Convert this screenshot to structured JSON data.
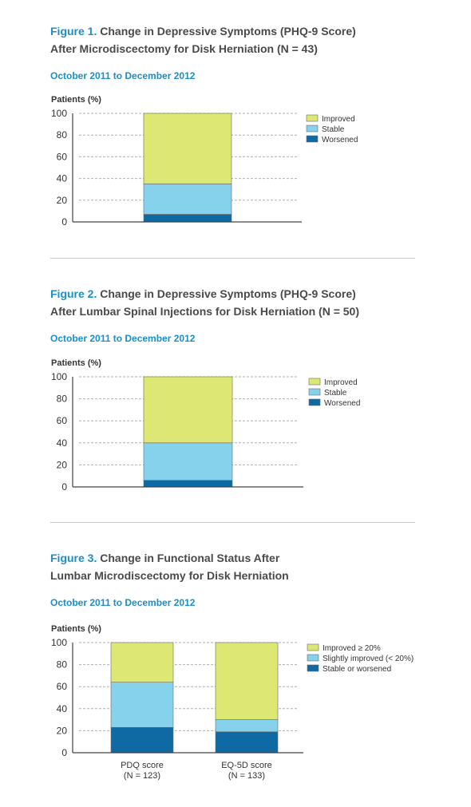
{
  "colors": {
    "improved": "#dde874",
    "stable": "#86d1eb",
    "worsened": "#0f6aa3",
    "accent": "#1a8fc9"
  },
  "figures": [
    {
      "label": "Figure 1.",
      "title_line1": "Change in Depressive Symptoms (PHQ-9 Score)",
      "title_line2": "After Microdiscectomy for Disk Herniation (N = 43)",
      "date_range": "October 2011 to December 2012"
    },
    {
      "label": "Figure 2.",
      "title_line1": "Change in Depressive Symptoms (PHQ-9 Score)",
      "title_line2": "After Lumbar Spinal Injections for Disk Herniation (N = 50)",
      "date_range": "October 2011 to December 2012"
    },
    {
      "label": "Figure 3.",
      "title_line1": "Change in Functional Status After",
      "title_line2": "Lumbar Microdiscectomy for Disk Herniation",
      "date_range": "October 2011 to December 2012"
    }
  ],
  "chart_data": [
    {
      "type": "bar",
      "stacked": true,
      "ylabel": "Patients (%)",
      "ylim": [
        0,
        100
      ],
      "yticks": [
        0,
        20,
        40,
        60,
        80,
        100
      ],
      "grid": true,
      "legend_position": "right",
      "categories": [
        ""
      ],
      "series": [
        {
          "name": "Worsened",
          "values": [
            7
          ],
          "color": "#0f6aa3"
        },
        {
          "name": "Stable",
          "values": [
            28
          ],
          "color": "#86d1eb"
        },
        {
          "name": "Improved",
          "values": [
            65
          ],
          "color": "#dde874"
        }
      ]
    },
    {
      "type": "bar",
      "stacked": true,
      "ylabel": "Patients (%)",
      "ylim": [
        0,
        100
      ],
      "yticks": [
        0,
        20,
        40,
        60,
        80,
        100
      ],
      "grid": true,
      "legend_position": "right",
      "categories": [
        ""
      ],
      "series": [
        {
          "name": "Worsened",
          "values": [
            6
          ],
          "color": "#0f6aa3"
        },
        {
          "name": "Stable",
          "values": [
            34
          ],
          "color": "#86d1eb"
        },
        {
          "name": "Improved",
          "values": [
            60
          ],
          "color": "#dde874"
        }
      ]
    },
    {
      "type": "bar",
      "stacked": true,
      "ylabel": "Patients (%)",
      "ylim": [
        0,
        100
      ],
      "yticks": [
        0,
        20,
        40,
        60,
        80,
        100
      ],
      "grid": true,
      "legend_position": "right",
      "categories": [
        "PDQ score",
        "EQ-5D score"
      ],
      "category_sublabels": [
        "(N = 123)",
        "(N = 133)"
      ],
      "series": [
        {
          "name": "Stable or worsened",
          "values": [
            23,
            19
          ],
          "color": "#0f6aa3"
        },
        {
          "name": "Slightly improved (< 20%)",
          "values": [
            41,
            11
          ],
          "color": "#86d1eb"
        },
        {
          "name": "Improved ≥ 20%",
          "values": [
            36,
            70
          ],
          "color": "#dde874"
        }
      ]
    }
  ]
}
